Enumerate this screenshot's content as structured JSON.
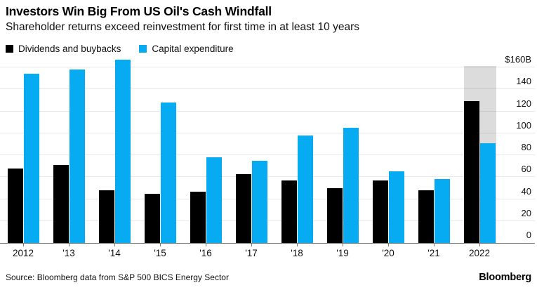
{
  "header": {
    "title": "Investors Win Big From US Oil's Cash Windfall",
    "subtitle": "Shareholder returns exceed reinvestment for first time in at least 10 years"
  },
  "legend": [
    {
      "label": "Dividends and buybacks",
      "color": "#000000"
    },
    {
      "label": "Capital expenditure",
      "color": "#07abf2"
    }
  ],
  "chart_data": {
    "type": "bar",
    "title": "Investors Win Big From US Oil's Cash Windfall",
    "subtitle": "Shareholder returns exceed reinvestment for first time in at least 10 years",
    "categories": [
      "2012",
      "'13",
      "'14",
      "'15",
      "'16",
      "'17",
      "'18",
      "'19",
      "'20",
      "'21",
      "2022"
    ],
    "series": [
      {
        "name": "Dividends and buybacks",
        "color": "#000000",
        "values": [
          68,
          71,
          48,
          45,
          47,
          63,
          57,
          50,
          57,
          48,
          129
        ]
      },
      {
        "name": "Capital expenditure",
        "color": "#07abf2",
        "values": [
          154,
          158,
          167,
          128,
          78,
          75,
          98,
          105,
          65,
          58,
          91
        ]
      }
    ],
    "unit": "$B",
    "ylim": [
      0,
      160
    ],
    "yticks": [
      {
        "value": 0,
        "label": "0"
      },
      {
        "value": 20,
        "label": "20"
      },
      {
        "value": 40,
        "label": "40"
      },
      {
        "value": 60,
        "label": "60"
      },
      {
        "value": 80,
        "label": "80"
      },
      {
        "value": 100,
        "label": "100"
      },
      {
        "value": 120,
        "label": "120"
      },
      {
        "value": 140,
        "label": "140"
      },
      {
        "value": 160,
        "label": "$160B"
      }
    ],
    "grid": true,
    "legend_position": "top-left",
    "y_axis_side": "right",
    "highlight": {
      "category": "2022",
      "color": "#dcdcdc"
    }
  },
  "footer": {
    "source": "Source: Bloomberg data from S&P 500 BICS Energy Sector",
    "brand": "Bloomberg"
  }
}
